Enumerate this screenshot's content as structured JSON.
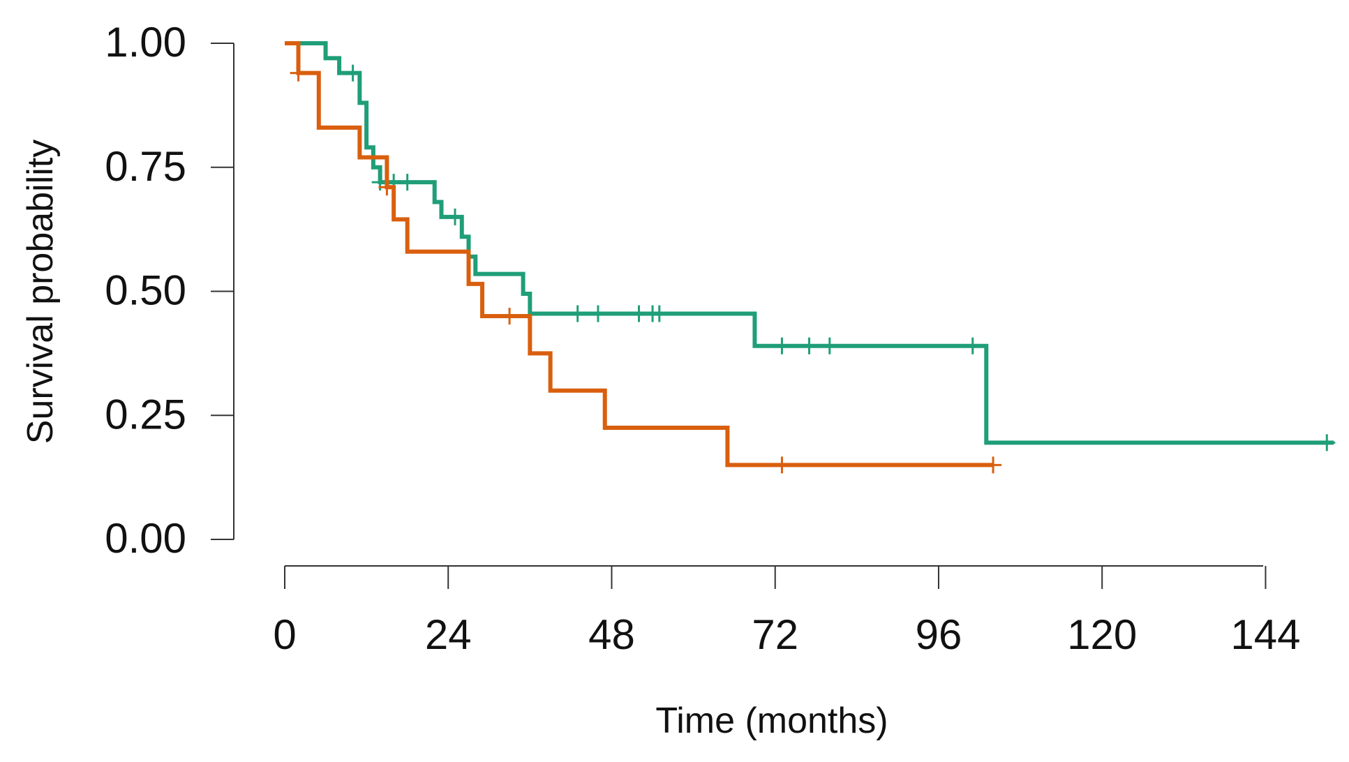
{
  "chart_data": {
    "type": "line",
    "subtype": "kaplan-meier",
    "title": "",
    "xlabel": "Time (months)",
    "ylabel": "Survival probability",
    "xlim": [
      0,
      150
    ],
    "ylim": [
      0,
      1
    ],
    "x_ticks": [
      0,
      24,
      48,
      72,
      96,
      120,
      144
    ],
    "y_ticks": [
      "0.00",
      "0.25",
      "0.50",
      "0.75",
      "1.00"
    ],
    "grid": false,
    "legend": "none",
    "series": [
      {
        "name": "green",
        "color": "#1f9e78",
        "steps": [
          [
            0,
            1.0
          ],
          [
            6,
            0.97
          ],
          [
            8,
            0.94
          ],
          [
            11,
            0.88
          ],
          [
            12,
            0.79
          ],
          [
            13,
            0.75
          ],
          [
            14,
            0.72
          ],
          [
            22,
            0.68
          ],
          [
            23,
            0.65
          ],
          [
            26,
            0.61
          ],
          [
            27,
            0.57
          ],
          [
            28,
            0.535
          ],
          [
            35,
            0.495
          ],
          [
            36,
            0.455
          ],
          [
            69,
            0.39
          ],
          [
            103,
            0.195
          ],
          [
            154,
            0.195
          ]
        ],
        "censored": [
          [
            10,
            0.94
          ],
          [
            14,
            0.72
          ],
          [
            16,
            0.72
          ],
          [
            18,
            0.72
          ],
          [
            25,
            0.65
          ],
          [
            43,
            0.455
          ],
          [
            46,
            0.455
          ],
          [
            52,
            0.455
          ],
          [
            54,
            0.455
          ],
          [
            55,
            0.455
          ],
          [
            73,
            0.39
          ],
          [
            77,
            0.39
          ],
          [
            80,
            0.39
          ],
          [
            101,
            0.39
          ],
          [
            153,
            0.195
          ]
        ]
      },
      {
        "name": "orange",
        "color": "#d95f0e",
        "steps": [
          [
            0,
            1.0
          ],
          [
            2,
            0.94
          ],
          [
            5,
            0.83
          ],
          [
            11,
            0.77
          ],
          [
            15,
            0.71
          ],
          [
            16,
            0.645
          ],
          [
            18,
            0.58
          ],
          [
            27,
            0.515
          ],
          [
            29,
            0.45
          ],
          [
            36,
            0.375
          ],
          [
            39,
            0.3
          ],
          [
            47,
            0.225
          ],
          [
            65,
            0.15
          ],
          [
            104,
            0.15
          ]
        ],
        "censored": [
          [
            2,
            0.94
          ],
          [
            15,
            0.71
          ],
          [
            33,
            0.45
          ],
          [
            73,
            0.15
          ],
          [
            104,
            0.15
          ]
        ]
      }
    ]
  }
}
